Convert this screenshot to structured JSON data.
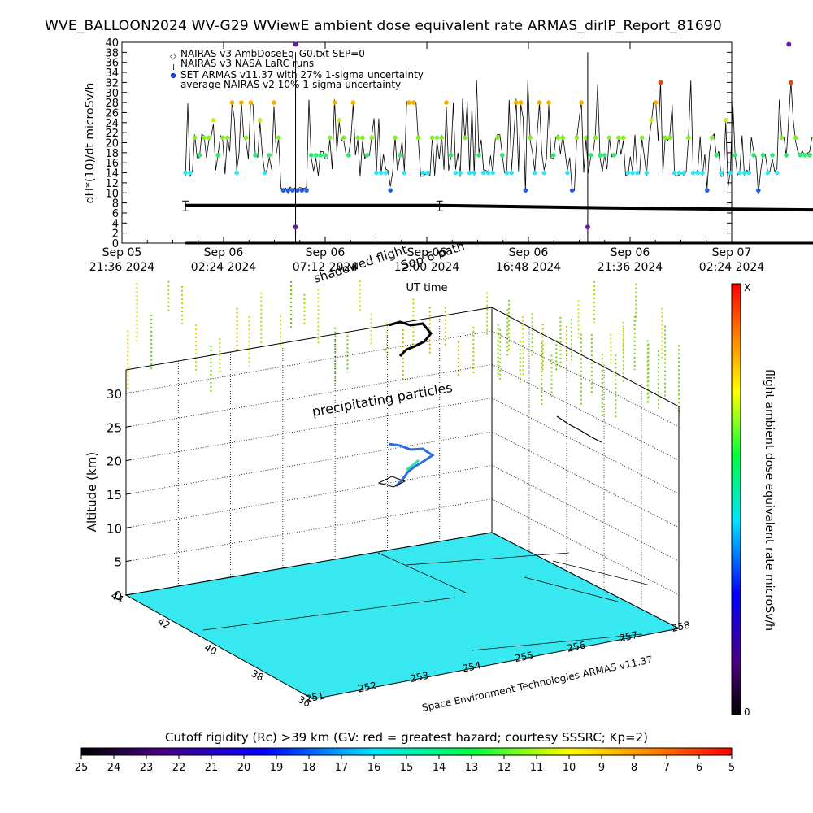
{
  "title": "WVE_BALLOON2024 WV-G29 WViewE ambient dose equivalent rate ARMAS_dirIP_Report_81690",
  "chart_data": [
    {
      "type": "scatter",
      "title": "",
      "xlabel": "UT time",
      "ylabel": "dH*(10)/dt microSv/h",
      "ylim": [
        0,
        40
      ],
      "yticks": [
        0,
        2,
        4,
        6,
        8,
        10,
        12,
        14,
        16,
        18,
        20,
        22,
        24,
        26,
        28,
        30,
        32,
        34,
        36,
        38,
        40
      ],
      "xticks": [
        {
          "day": "Sep 05",
          "time": "21:36 2024"
        },
        {
          "day": "Sep 06",
          "time": "02:24 2024"
        },
        {
          "day": "Sep 06",
          "time": "07:12 2024"
        },
        {
          "day": "Sep 06",
          "time": "12:00 2024"
        },
        {
          "day": "Sep 06",
          "time": "16:48 2024"
        },
        {
          "day": "Sep 06",
          "time": "21:36 2024"
        },
        {
          "day": "Sep 07",
          "time": "02:24 2024"
        }
      ],
      "legend_position": "top-left",
      "legend": [
        {
          "symbol": "◇",
          "label": "NAIRAS v3 AmbDoseEq_G0.txt SEP=0"
        },
        {
          "symbol": "+",
          "label": "NAIRAS v3 NASA LaRC runs"
        },
        {
          "symbol": "●",
          "color": "#1a3ad6",
          "label": "SET ARMAS v11.37 with 27% 1-sigma uncertainty"
        },
        {
          "symbol": "",
          "label": "average NAIRAS v2 10% 1-sigma uncertainty"
        }
      ],
      "series": [
        {
          "name": "NAIRAS v3 NASA LaRC runs",
          "x_hours": [
            3.0,
            37.8
          ],
          "values": [
            0,
            0
          ]
        },
        {
          "name": "average NAIRAS v2 10% 1-sigma uncertainty",
          "x_hours": [
            3.0,
            15.0,
            23.0,
            33.0,
            37.8
          ],
          "values": [
            7.5,
            7.5,
            7.0,
            6.6,
            6.5
          ]
        }
      ],
      "annotations": [
        "Sep 6 path",
        "shadowed flight"
      ]
    },
    {
      "type": "scatter",
      "title": "",
      "ylabel": "Altitude (km)",
      "zlim": [
        0,
        35
      ],
      "zticks": [
        0,
        5,
        10,
        15,
        20,
        25,
        30
      ],
      "latitude_ticks": [
        44,
        42,
        40,
        38,
        36
      ],
      "longitude_ticks": [
        251,
        252,
        253,
        254,
        255,
        256,
        257,
        258
      ],
      "annotations": [
        "precipitating particles"
      ],
      "credit": "Space Environment Technologies ARMAS v11.37"
    },
    {
      "type": "heatmap",
      "title": "flight ambient dose equivalent rate microSv/h",
      "range_labels": [
        "0",
        "X"
      ]
    },
    {
      "type": "heatmap",
      "title": "Cutoff rigidity (Rc) >39 km (GV: red = greatest hazard; courtesy SSSRC; Kp=2)",
      "ticks": [
        25,
        24,
        23,
        22,
        21,
        20,
        19,
        18,
        17,
        16,
        15,
        14,
        13,
        12,
        11,
        10,
        9,
        8,
        7,
        6,
        5
      ]
    }
  ]
}
